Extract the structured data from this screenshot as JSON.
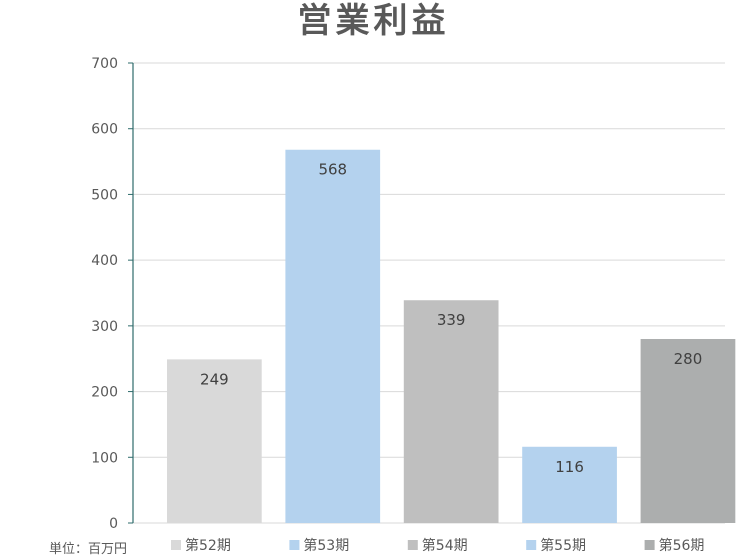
{
  "chart_data": {
    "type": "bar",
    "title": "営業利益",
    "unit_note": "単位：百万円",
    "categories": [
      "第52期",
      "第53期",
      "第54期",
      "第55期",
      "第56期"
    ],
    "values": [
      249,
      568,
      339,
      116,
      280
    ],
    "bar_colors": [
      "#d9d9d9",
      "#b4d2ee",
      "#bfbfbf",
      "#b4d2ee",
      "#acaeae"
    ],
    "ylim": [
      0,
      700
    ],
    "yticks": [
      0,
      100,
      200,
      300,
      400,
      500,
      600,
      700
    ],
    "grid": true,
    "legend_position": "bottom",
    "data_labels": true,
    "colors": {
      "grid": "#d9d9d9",
      "axis": "#2e6b6b",
      "tick_text": "#595959",
      "label_text": "#404040"
    }
  }
}
